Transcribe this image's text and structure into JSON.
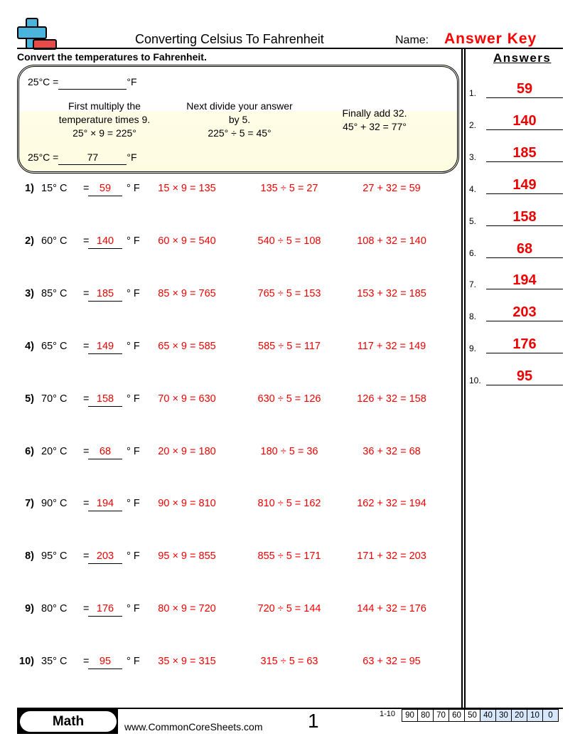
{
  "header": {
    "title": "Converting Celsius To Fahrenheit",
    "name_label": "Name:",
    "name_value": "Answer Key"
  },
  "instructions": "Convert the temperatures to Fahrenheit.",
  "example": {
    "question_prefix": "25°C =",
    "unit": "°F",
    "answer": "77",
    "step1": [
      "First multiply the",
      "temperature times 9.",
      "25° × 9 = 225°"
    ],
    "step2": [
      "Next divide your answer",
      "by 5.",
      "225° ÷ 5 = 45°"
    ],
    "step3": [
      "Finally add 32.",
      "45° + 32 = 77°"
    ]
  },
  "problems": [
    {
      "n": "1)",
      "c": "15° C",
      "a": "59",
      "s1": "15 × 9 = 135",
      "s2": "135 ÷ 5 = 27",
      "s3": "27 + 32 = 59"
    },
    {
      "n": "2)",
      "c": "60° C",
      "a": "140",
      "s1": "60 × 9 = 540",
      "s2": "540 ÷ 5 = 108",
      "s3": "108 + 32 = 140"
    },
    {
      "n": "3)",
      "c": "85° C",
      "a": "185",
      "s1": "85 × 9 = 765",
      "s2": "765 ÷ 5 = 153",
      "s3": "153 + 32 = 185"
    },
    {
      "n": "4)",
      "c": "65° C",
      "a": "149",
      "s1": "65 × 9 = 585",
      "s2": "585 ÷ 5 = 117",
      "s3": "117 + 32 = 149"
    },
    {
      "n": "5)",
      "c": "70° C",
      "a": "158",
      "s1": "70 × 9 = 630",
      "s2": "630 ÷ 5 = 126",
      "s3": "126 + 32 = 158"
    },
    {
      "n": "6)",
      "c": "20° C",
      "a": "68",
      "s1": "20 × 9 = 180",
      "s2": "180 ÷ 5 = 36",
      "s3": "36 + 32 = 68"
    },
    {
      "n": "7)",
      "c": "90° C",
      "a": "194",
      "s1": "90 × 9 = 810",
      "s2": "810 ÷ 5 = 162",
      "s3": "162 + 32 = 194"
    },
    {
      "n": "8)",
      "c": "95° C",
      "a": "203",
      "s1": "95 × 9 = 855",
      "s2": "855 ÷ 5 = 171",
      "s3": "171 + 32 = 203"
    },
    {
      "n": "9)",
      "c": "80° C",
      "a": "176",
      "s1": "80 × 9 = 720",
      "s2": "720 ÷ 5 = 144",
      "s3": "144 + 32 = 176"
    },
    {
      "n": "10)",
      "c": "35° C",
      "a": "95",
      "s1": "35 × 9 = 315",
      "s2": "315 ÷ 5 = 63",
      "s3": "63 + 32 = 95"
    }
  ],
  "eq": "=",
  "unit": "° F",
  "answers": {
    "title": "Answers",
    "items": [
      {
        "n": "1.",
        "v": "59"
      },
      {
        "n": "2.",
        "v": "140"
      },
      {
        "n": "3.",
        "v": "185"
      },
      {
        "n": "4.",
        "v": "149"
      },
      {
        "n": "5.",
        "v": "158"
      },
      {
        "n": "6.",
        "v": "68"
      },
      {
        "n": "7.",
        "v": "194"
      },
      {
        "n": "8.",
        "v": "203"
      },
      {
        "n": "9.",
        "v": "176"
      },
      {
        "n": "10.",
        "v": "95"
      }
    ]
  },
  "footer": {
    "subject": "Math",
    "site": "www.CommonCoreSheets.com",
    "page": "1",
    "score_label": "1-10",
    "scores": [
      "90",
      "80",
      "70",
      "60",
      "50",
      "40",
      "30",
      "20",
      "10",
      "0"
    ],
    "highlight_color": "#d6e6fb"
  }
}
